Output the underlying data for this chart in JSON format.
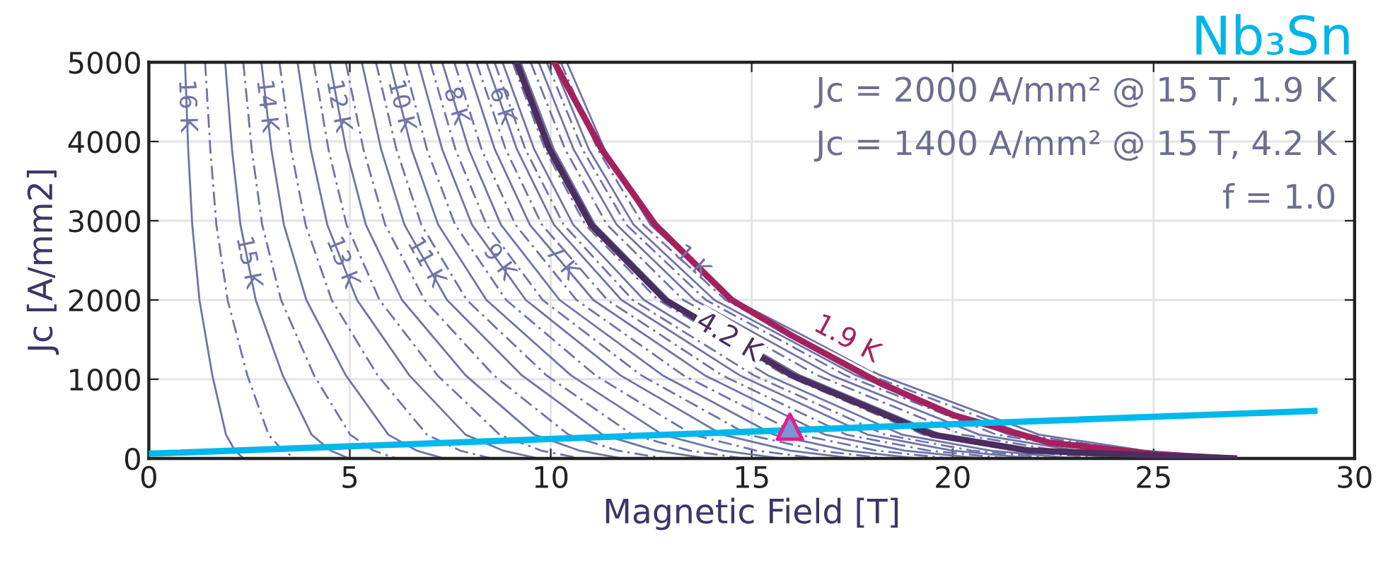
{
  "chart_data": {
    "type": "line",
    "title": "Nb₃Sn",
    "xlabel": "Magnetic Field [T]",
    "ylabel": "Jc [A/mm2]",
    "xlim": [
      0,
      30
    ],
    "xticks": [
      0,
      5,
      10,
      15,
      20,
      25,
      30
    ],
    "ylim": [
      0,
      5000
    ],
    "yticks": [
      0,
      1000,
      2000,
      3000,
      4000,
      5000
    ],
    "grid": true,
    "legend": false,
    "annotations": [
      "Jc = 2000 A/mm² @ 15 T, 1.9 K",
      "Jc = 1400 A/mm² @ 15 T, 4.2 K",
      "f = 1.0"
    ],
    "series": [
      {
        "name": "1 K",
        "color": "#6f74a8",
        "line_style": "solid",
        "x": [
          10.4,
          11.34,
          12.48,
          14.56,
          18.2,
          22.15,
          24.75,
          27.25
        ],
        "values": [
          5000,
          3900,
          2950,
          2000,
          1050,
          300,
          100,
          0
        ]
      },
      {
        "color": "#6f74a8",
        "line_style": "dashed",
        "x": [
          10.25,
          11.17,
          12.3,
          14.35,
          17.94,
          21.83,
          24.4,
          26.86
        ],
        "values": [
          5000,
          3900,
          2950,
          2000,
          1050,
          300,
          100,
          0
        ]
      },
      {
        "name": "1.9 K",
        "color": "#a4215f",
        "line_style": "solid",
        "x": [
          10.09,
          11.27,
          12.6,
          14.5,
          16.0,
          18.2,
          20.0,
          22.4,
          25.1,
          27.0
        ],
        "values": [
          5000,
          3900,
          2950,
          2000,
          1550,
          950,
          550,
          200,
          50,
          0
        ]
      },
      {
        "color": "#6f74a8",
        "line_style": "solid",
        "x": [
          10.05,
          10.95,
          12.06,
          14.07,
          17.59,
          21.41,
          23.92,
          26.33
        ],
        "values": [
          5000,
          3900,
          2950,
          2000,
          1050,
          300,
          100,
          0
        ]
      },
      {
        "color": "#6f74a8",
        "line_style": "dashed",
        "x": [
          9.9,
          10.79,
          11.88,
          13.86,
          17.33,
          21.09,
          23.56,
          25.94
        ],
        "values": [
          5000,
          3900,
          2950,
          2000,
          1050,
          300,
          100,
          0
        ]
      },
      {
        "color": "#6f74a8",
        "line_style": "solid",
        "x": [
          9.7,
          10.57,
          11.64,
          13.58,
          16.98,
          20.66,
          23.09,
          25.41
        ],
        "values": [
          5000,
          3900,
          2950,
          2000,
          1050,
          300,
          100,
          0
        ]
      },
      {
        "color": "#6f74a8",
        "line_style": "dashed",
        "x": [
          9.5,
          10.36,
          11.4,
          13.3,
          16.63,
          20.24,
          22.61,
          24.89
        ],
        "values": [
          5000,
          3900,
          2950,
          2000,
          1050,
          300,
          100,
          0
        ]
      },
      {
        "color": "#6f74a8",
        "line_style": "solid",
        "x": [
          9.25,
          10.08,
          11.1,
          12.95,
          16.19,
          19.7,
          22.02,
          24.24
        ],
        "values": [
          5000,
          3900,
          2950,
          2000,
          1050,
          300,
          100,
          0
        ]
      },
      {
        "name": "4.2 K",
        "color": "#4b2d5f",
        "line_style": "solid",
        "x": [
          9.15,
          9.97,
          11.0,
          12.85,
          16.0,
          19.5,
          21.9,
          27.0
        ],
        "values": [
          5000,
          3900,
          2950,
          2000,
          1050,
          300,
          100,
          0
        ]
      },
      {
        "color": "#6f74a8",
        "line_style": "dashed",
        "x": [
          9.05,
          9.86,
          10.86,
          12.67,
          15.84,
          19.28,
          21.54,
          23.71
        ],
        "values": [
          5000,
          3900,
          2950,
          2000,
          1050,
          300,
          100,
          0
        ]
      },
      {
        "color": "#6f74a8",
        "line_style": "solid",
        "x": [
          8.8,
          9.59,
          10.56,
          12.32,
          15.4,
          18.74,
          20.94,
          23.06
        ],
        "values": [
          5000,
          3900,
          2950,
          2000,
          1050,
          300,
          100,
          0
        ]
      },
      {
        "color": "#6f74a8",
        "line_style": "dashed",
        "x": [
          8.6,
          9.37,
          10.32,
          12.04,
          15.05,
          18.32,
          20.47,
          22.53
        ],
        "values": [
          5000,
          3900,
          2950,
          2000,
          1050,
          300,
          100,
          0
        ]
      },
      {
        "name": "6 K",
        "color": "#6f74a8",
        "line_style": "solid",
        "x": [
          8.4,
          9.16,
          10.08,
          11.76,
          14.7,
          17.89,
          19.99,
          22.01
        ],
        "values": [
          5000,
          3900,
          2950,
          2000,
          1050,
          300,
          100,
          0
        ]
      },
      {
        "color": "#6f74a8",
        "line_style": "dashed",
        "x": [
          8.15,
          8.88,
          9.78,
          11.41,
          14.26,
          17.36,
          19.4,
          21.35
        ],
        "values": [
          5000,
          3900,
          2950,
          2000,
          1050,
          300,
          100,
          0
        ]
      },
      {
        "name": "7 K",
        "color": "#6f74a8",
        "line_style": "solid",
        "x": [
          7.9,
          8.61,
          9.48,
          11.06,
          13.83,
          16.83,
          18.8,
          20.7
        ],
        "values": [
          5000,
          3900,
          2950,
          2000,
          1050,
          300,
          100,
          0
        ]
      },
      {
        "color": "#6f74a8",
        "line_style": "dashed",
        "x": [
          7.6,
          8.28,
          9.12,
          10.64,
          13.3,
          16.19,
          18.09,
          19.91
        ],
        "values": [
          5000,
          3900,
          2950,
          2000,
          1050,
          300,
          100,
          0
        ]
      },
      {
        "name": "8 K",
        "color": "#6f74a8",
        "line_style": "solid",
        "x": [
          7.3,
          7.96,
          8.76,
          10.22,
          12.78,
          15.55,
          17.37,
          19.13
        ],
        "values": [
          5000,
          3900,
          2950,
          2000,
          1050,
          300,
          100,
          0
        ]
      },
      {
        "color": "#6f74a8",
        "line_style": "dashed",
        "x": [
          7.0,
          7.63,
          8.4,
          9.8,
          12.25,
          14.91,
          16.66,
          18.34
        ],
        "values": [
          5000,
          3900,
          2950,
          2000,
          1050,
          300,
          100,
          0
        ]
      },
      {
        "name": "9 K",
        "color": "#6f74a8",
        "line_style": "solid",
        "x": [
          6.7,
          7.3,
          8.04,
          9.38,
          11.73,
          14.27,
          15.95,
          17.55
        ],
        "values": [
          5000,
          3900,
          2950,
          2000,
          1050,
          300,
          100,
          0
        ]
      },
      {
        "color": "#6f74a8",
        "line_style": "dashed",
        "x": [
          6.35,
          6.92,
          7.62,
          8.89,
          11.11,
          13.53,
          15.11,
          16.64
        ],
        "values": [
          5000,
          3900,
          2950,
          2000,
          1050,
          300,
          100,
          0
        ]
      },
      {
        "name": "10 K",
        "color": "#6f74a8",
        "line_style": "solid",
        "x": [
          6.0,
          6.54,
          7.2,
          8.4,
          10.5,
          12.78,
          14.28,
          15.72
        ],
        "values": [
          5000,
          3900,
          2950,
          2000,
          1050,
          300,
          100,
          0
        ]
      },
      {
        "color": "#6f74a8",
        "line_style": "dashed",
        "x": [
          5.65,
          6.16,
          6.78,
          7.91,
          9.89,
          12.03,
          13.45,
          14.8
        ],
        "values": [
          5000,
          3900,
          2950,
          2000,
          1050,
          300,
          100,
          0
        ]
      },
      {
        "name": "11 K",
        "color": "#6f74a8",
        "line_style": "solid",
        "x": [
          5.3,
          5.78,
          6.36,
          7.42,
          9.28,
          11.29,
          12.61,
          13.89
        ],
        "values": [
          5000,
          3900,
          2950,
          2000,
          1050,
          300,
          100,
          0
        ]
      },
      {
        "color": "#6f74a8",
        "line_style": "dashed",
        "x": [
          4.9,
          5.34,
          5.88,
          6.86,
          8.58,
          10.44,
          11.66,
          12.84
        ],
        "values": [
          5000,
          3900,
          2950,
          2000,
          1050,
          300,
          100,
          0
        ]
      },
      {
        "name": "12 K",
        "color": "#6f74a8",
        "line_style": "solid",
        "x": [
          4.5,
          4.91,
          5.4,
          6.3,
          7.88,
          9.59,
          10.71,
          11.79
        ],
        "values": [
          5000,
          3900,
          2950,
          2000,
          1050,
          300,
          100,
          0
        ]
      },
      {
        "color": "#6f74a8",
        "line_style": "dashed",
        "x": [
          4.1,
          4.47,
          4.92,
          5.74,
          7.18,
          8.73,
          9.76,
          10.74
        ],
        "values": [
          5000,
          3900,
          2950,
          2000,
          1050,
          300,
          100,
          0
        ]
      },
      {
        "name": "13 K",
        "color": "#6f74a8",
        "line_style": "solid",
        "x": [
          3.7,
          4.03,
          4.44,
          5.18,
          6.48,
          7.88,
          8.81,
          9.69
        ],
        "values": [
          5000,
          3900,
          2950,
          2000,
          1050,
          300,
          100,
          0
        ]
      },
      {
        "color": "#6f74a8",
        "line_style": "dashed",
        "x": [
          3.25,
          3.54,
          3.9,
          4.55,
          5.69,
          6.92,
          7.74,
          8.52
        ],
        "values": [
          5000,
          3900,
          2950,
          2000,
          1050,
          300,
          100,
          0
        ]
      },
      {
        "name": "14 K",
        "color": "#6f74a8",
        "line_style": "solid",
        "x": [
          2.8,
          3.05,
          3.36,
          3.92,
          4.9,
          5.96,
          6.66,
          7.34
        ],
        "values": [
          5000,
          3900,
          2950,
          2000,
          1050,
          300,
          100,
          0
        ]
      },
      {
        "color": "#6f74a8",
        "line_style": "dashed",
        "x": [
          2.35,
          2.56,
          2.82,
          3.29,
          4.11,
          5.01,
          5.59,
          6.16
        ],
        "values": [
          5000,
          3900,
          2950,
          2000,
          1050,
          300,
          100,
          0
        ]
      },
      {
        "name": "15 K",
        "color": "#6f74a8",
        "line_style": "solid",
        "x": [
          1.9,
          2.07,
          2.28,
          2.66,
          3.33,
          4.05,
          4.52,
          4.98
        ],
        "values": [
          5000,
          3900,
          2950,
          2000,
          1050,
          300,
          100,
          0
        ]
      },
      {
        "color": "#6f74a8",
        "line_style": "dashed",
        "x": [
          1.4,
          1.53,
          1.68,
          1.96,
          2.45,
          2.98,
          3.33,
          3.67
        ],
        "values": [
          5000,
          3900,
          2950,
          2000,
          1050,
          300,
          100,
          0
        ]
      },
      {
        "name": "16 K",
        "color": "#6f74a8",
        "line_style": "solid",
        "x": [
          0.9,
          0.98,
          1.08,
          1.26,
          1.58,
          1.92,
          2.14,
          2.36
        ],
        "values": [
          5000,
          3900,
          2950,
          2000,
          1050,
          300,
          100,
          0
        ]
      },
      {
        "color": "#00b8ec",
        "line_style": "solid",
        "x": [
          0,
          29
        ],
        "values": [
          60,
          600
        ]
      },
      {
        "type": "scatter",
        "marker": "triangle",
        "color": "#e0208c",
        "x": [
          15.95
        ],
        "values": [
          400
        ]
      }
    ]
  }
}
